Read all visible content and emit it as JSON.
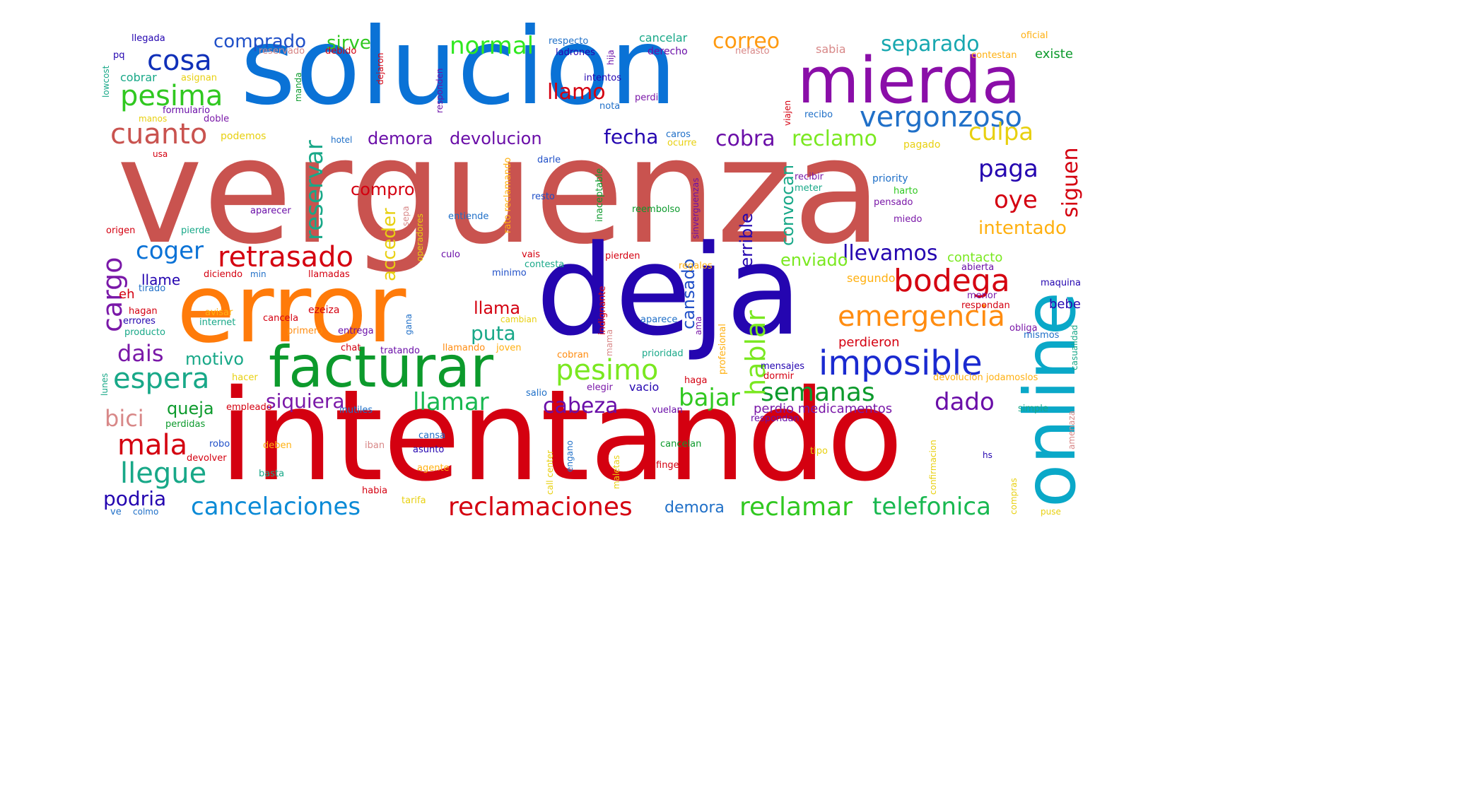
{
  "words": [
    {
      "text": "verguenza",
      "color": "#c9534f"
    },
    {
      "text": "intentando",
      "color": "#d40010"
    },
    {
      "text": "solucion",
      "color": "#0a72d6"
    },
    {
      "text": "deja",
      "color": "#2405b0"
    },
    {
      "text": "error",
      "color": "#ff7b0a"
    },
    {
      "text": "mierda",
      "color": "#8a0ea8"
    },
    {
      "text": "online",
      "color": "#0aa8c8"
    },
    {
      "text": "facturar",
      "color": "#0c9a2c"
    },
    {
      "text": "imposible",
      "color": "#1a2ad0"
    },
    {
      "text": "vergonzoso",
      "color": "#2070c8"
    },
    {
      "text": "cosa",
      "color": "#1030b8"
    },
    {
      "text": "pesima",
      "color": "#30c820"
    },
    {
      "text": "cuanto",
      "color": "#c9534f"
    },
    {
      "text": "emergencia",
      "color": "#ff8c10"
    },
    {
      "text": "bodega",
      "color": "#d40010"
    },
    {
      "text": "retrasado",
      "color": "#d40010"
    },
    {
      "text": "espera",
      "color": "#18a888"
    },
    {
      "text": "pesimo",
      "color": "#7ae820"
    },
    {
      "text": "semanas",
      "color": "#0c9a2c"
    },
    {
      "text": "reclamaciones",
      "color": "#d40010"
    },
    {
      "text": "cancelaciones",
      "color": "#0a8ad6"
    },
    {
      "text": "reclamar",
      "color": "#30c820"
    },
    {
      "text": "telefonica",
      "color": "#18b850"
    },
    {
      "text": "llegue",
      "color": "#18a888"
    },
    {
      "text": "mala",
      "color": "#d40010"
    },
    {
      "text": "llamar",
      "color": "#18b850"
    },
    {
      "text": "siquiera",
      "color": "#7a18a8"
    },
    {
      "text": "bajar",
      "color": "#30c820"
    },
    {
      "text": "cabeza",
      "color": "#6a0ea8"
    },
    {
      "text": "dado",
      "color": "#6a0ea8"
    },
    {
      "text": "coger",
      "color": "#0a72d6"
    },
    {
      "text": "llevamos",
      "color": "#2405b0"
    },
    {
      "text": "culpa",
      "color": "#e8d010"
    },
    {
      "text": "paga",
      "color": "#2405b0"
    },
    {
      "text": "oye",
      "color": "#d40010"
    },
    {
      "text": "intentado",
      "color": "#ffb010"
    },
    {
      "text": "normal",
      "color": "#30e820"
    },
    {
      "text": "correo",
      "color": "#ff9a10"
    },
    {
      "text": "separado",
      "color": "#18a8b0"
    },
    {
      "text": "comprado",
      "color": "#2050c8"
    },
    {
      "text": "sirve",
      "color": "#30c820"
    },
    {
      "text": "reclamo",
      "color": "#7ae820"
    },
    {
      "text": "cobra",
      "color": "#6a0ea8"
    },
    {
      "text": "fecha",
      "color": "#2405b0"
    },
    {
      "text": "demora",
      "color": "#6a0ea8"
    },
    {
      "text": "devolucion",
      "color": "#6a0ea8"
    },
    {
      "text": "llamo",
      "color": "#d40010"
    },
    {
      "text": "dais",
      "color": "#7a18a8"
    },
    {
      "text": "motivo",
      "color": "#18a888"
    },
    {
      "text": "bici",
      "color": "#d88888"
    },
    {
      "text": "queja",
      "color": "#0c9a2c"
    },
    {
      "text": "podria",
      "color": "#2405b0"
    },
    {
      "text": "compro",
      "color": "#d40010"
    },
    {
      "text": "llama",
      "color": "#d40010"
    },
    {
      "text": "puta",
      "color": "#18a888"
    },
    {
      "text": "enviado",
      "color": "#7ae820"
    },
    {
      "text": "demora",
      "color": "#2070c8"
    },
    {
      "text": "perdio medicamentos",
      "color": "#7a18a8"
    },
    {
      "text": "perdieron",
      "color": "#d40010"
    },
    {
      "text": "segundo",
      "color": "#ffb010"
    },
    {
      "text": "contacto",
      "color": "#7ae820"
    },
    {
      "text": "existe",
      "color": "#0c9a2c"
    },
    {
      "text": "cargo",
      "color": "#7a18a8"
    },
    {
      "text": "reservar",
      "color": "#18a888"
    },
    {
      "text": "acceder",
      "color": "#e8d010"
    },
    {
      "text": "hablar",
      "color": "#7ae820"
    },
    {
      "text": "cansado",
      "color": "#2050c8"
    },
    {
      "text": "terrible",
      "color": "#2405b0"
    },
    {
      "text": "convocan",
      "color": "#18a888"
    },
    {
      "text": "siguen",
      "color": "#d40010"
    },
    {
      "text": "llegada",
      "color": "#2405b0"
    },
    {
      "text": "reservado",
      "color": "#d88888"
    },
    {
      "text": "debido",
      "color": "#d40010"
    },
    {
      "text": "respecto",
      "color": "#2070c8"
    },
    {
      "text": "ladrones",
      "color": "#2405b0"
    },
    {
      "text": "cancelar",
      "color": "#18a888"
    },
    {
      "text": "derecho",
      "color": "#6a0ea8"
    },
    {
      "text": "nefasto",
      "color": "#d88888"
    },
    {
      "text": "sabia",
      "color": "#d88888"
    },
    {
      "text": "oficial",
      "color": "#ffb010"
    },
    {
      "text": "contestan",
      "color": "#ffb010"
    },
    {
      "text": "cobrar",
      "color": "#18a888"
    },
    {
      "text": "asignan",
      "color": "#e8d010"
    },
    {
      "text": "formulario",
      "color": "#6a0ea8"
    },
    {
      "text": "doble",
      "color": "#7a18a8"
    },
    {
      "text": "manos",
      "color": "#e8d010"
    },
    {
      "text": "podemos",
      "color": "#e8d010"
    },
    {
      "text": "hotel",
      "color": "#2070c8"
    },
    {
      "text": "intentos",
      "color": "#2405b0"
    },
    {
      "text": "nota",
      "color": "#2070c8"
    },
    {
      "text": "perdi",
      "color": "#7a18a8"
    },
    {
      "text": "recibo",
      "color": "#2070c8"
    },
    {
      "text": "caros",
      "color": "#2070c8"
    },
    {
      "text": "ocurre",
      "color": "#e8d010"
    },
    {
      "text": "pagado",
      "color": "#e8d010"
    },
    {
      "text": "usa",
      "color": "#d40010"
    },
    {
      "text": "darle",
      "color": "#2050c8"
    },
    {
      "text": "recibir",
      "color": "#7a18a8"
    },
    {
      "text": "priority",
      "color": "#2070c8"
    },
    {
      "text": "meter",
      "color": "#18a888"
    },
    {
      "text": "harto",
      "color": "#30c820"
    },
    {
      "text": "pensado",
      "color": "#7a18a8"
    },
    {
      "text": "miedo",
      "color": "#7a18a8"
    },
    {
      "text": "resto",
      "color": "#2050c8"
    },
    {
      "text": "aparecer",
      "color": "#6a0ea8"
    },
    {
      "text": "entiende",
      "color": "#2070c8"
    },
    {
      "text": "reembolso",
      "color": "#0c9a2c"
    },
    {
      "text": "origen",
      "color": "#d40010"
    },
    {
      "text": "pierde",
      "color": "#18a888"
    },
    {
      "text": "culo",
      "color": "#6a0ea8"
    },
    {
      "text": "vais",
      "color": "#d40010"
    },
    {
      "text": "contesta",
      "color": "#18a888"
    },
    {
      "text": "pierden",
      "color": "#d40010"
    },
    {
      "text": "llame",
      "color": "#2405b0"
    },
    {
      "text": "diciendo",
      "color": "#d40010"
    },
    {
      "text": "min",
      "color": "#2070c8"
    },
    {
      "text": "llamadas",
      "color": "#d40010"
    },
    {
      "text": "minimo",
      "color": "#2050c8"
    },
    {
      "text": "regalos",
      "color": "#ffb010"
    },
    {
      "text": "abierta",
      "color": "#6a0ea8"
    },
    {
      "text": "eh",
      "color": "#d40010"
    },
    {
      "text": "tirado",
      "color": "#2070c8"
    },
    {
      "text": "hagan",
      "color": "#d40010"
    },
    {
      "text": "avisar",
      "color": "#ffb010"
    },
    {
      "text": "errores",
      "color": "#2405b0"
    },
    {
      "text": "internet",
      "color": "#18a888"
    },
    {
      "text": "cancela",
      "color": "#d40010"
    },
    {
      "text": "primero",
      "color": "#ff8c10"
    },
    {
      "text": "ezeiza",
      "color": "#d40010"
    },
    {
      "text": "entrega",
      "color": "#6a0ea8"
    },
    {
      "text": "producto",
      "color": "#18a888"
    },
    {
      "text": "chat",
      "color": "#d40010"
    },
    {
      "text": "tratando",
      "color": "#6a0ea8"
    },
    {
      "text": "llamando",
      "color": "#ff8c10"
    },
    {
      "text": "joven",
      "color": "#ffb010"
    },
    {
      "text": "cambian",
      "color": "#e8d010"
    },
    {
      "text": "cobran",
      "color": "#ff8c10"
    },
    {
      "text": "prioridad",
      "color": "#18a888"
    },
    {
      "text": "aparece",
      "color": "#2070c8"
    },
    {
      "text": "menor",
      "color": "#7a18a8"
    },
    {
      "text": "respondan",
      "color": "#d40010"
    },
    {
      "text": "obliga",
      "color": "#7a18a8"
    },
    {
      "text": "mismos",
      "color": "#2070c8"
    },
    {
      "text": "bebe",
      "color": "#2405b0"
    },
    {
      "text": "mensajes",
      "color": "#2405b0"
    },
    {
      "text": "dormir",
      "color": "#d40010"
    },
    {
      "text": "devolucion jodamoslos",
      "color": "#ffb010"
    },
    {
      "text": "hacer",
      "color": "#e8d010"
    },
    {
      "text": "salio",
      "color": "#2070c8"
    },
    {
      "text": "elegir",
      "color": "#7a18a8"
    },
    {
      "text": "haga",
      "color": "#d40010"
    },
    {
      "text": "vacio",
      "color": "#2405b0"
    },
    {
      "text": "empleado",
      "color": "#d40010"
    },
    {
      "text": "inutiles",
      "color": "#2070c8"
    },
    {
      "text": "vuelan",
      "color": "#6a0ea8"
    },
    {
      "text": "respondan",
      "color": "#6a0ea8"
    },
    {
      "text": "simple",
      "color": "#18a888"
    },
    {
      "text": "perdidas",
      "color": "#0c9a2c"
    },
    {
      "text": "robo",
      "color": "#2050c8"
    },
    {
      "text": "deben",
      "color": "#ffb010"
    },
    {
      "text": "iban",
      "color": "#d88888"
    },
    {
      "text": "asunto",
      "color": "#2405b0"
    },
    {
      "text": "cansa",
      "color": "#2070c8"
    },
    {
      "text": "cancelan",
      "color": "#0c9a2c"
    },
    {
      "text": "tipo",
      "color": "#e8d010"
    },
    {
      "text": "devolver",
      "color": "#d40010"
    },
    {
      "text": "basta",
      "color": "#18a888"
    },
    {
      "text": "agente",
      "color": "#ffb010"
    },
    {
      "text": "finger",
      "color": "#d40010"
    },
    {
      "text": "habia",
      "color": "#d40010"
    },
    {
      "text": "tarifa",
      "color": "#e8d010"
    },
    {
      "text": "ve",
      "color": "#2070c8"
    },
    {
      "text": "colmo",
      "color": "#2070c8"
    },
    {
      "text": "puse",
      "color": "#e8d010"
    },
    {
      "text": "hs",
      "color": "#2405b0"
    },
    {
      "text": "maquina",
      "color": "#2405b0"
    },
    {
      "text": "pq",
      "color": "#2405b0"
    },
    {
      "text": "lowcost",
      "color": "#18a888"
    },
    {
      "text": "manda",
      "color": "#0c9a2c"
    },
    {
      "text": "dejaron",
      "color": "#d40010"
    },
    {
      "text": "responden",
      "color": "#6a0ea8"
    },
    {
      "text": "hija",
      "color": "#6a0ea8"
    },
    {
      "text": "viajen",
      "color": "#d40010"
    },
    {
      "text": "inaceptable",
      "color": "#0c9a2c"
    },
    {
      "text": "sinverguenzas",
      "color": "#6a0ea8"
    },
    {
      "text": "rato reclamando",
      "color": "#ffb010"
    },
    {
      "text": "sepa",
      "color": "#d88888"
    },
    {
      "text": "operadores",
      "color": "#e8d010"
    },
    {
      "text": "indignante",
      "color": "#d40010"
    },
    {
      "text": "mama",
      "color": "#d88888"
    },
    {
      "text": "ama",
      "color": "#7a18a8"
    },
    {
      "text": "profesional",
      "color": "#ffb010"
    },
    {
      "text": "gana",
      "color": "#2070c8"
    },
    {
      "text": "engano",
      "color": "#2070c8"
    },
    {
      "text": "maletas",
      "color": "#e8d010"
    },
    {
      "text": "call center",
      "color": "#e8d010"
    },
    {
      "text": "confirmacion",
      "color": "#e8d010"
    },
    {
      "text": "compras",
      "color": "#e8d010"
    },
    {
      "text": "amenaza",
      "color": "#d88888"
    },
    {
      "text": "casualidad",
      "color": "#18a888"
    },
    {
      "text": "lunes",
      "color": "#18a888"
    }
  ]
}
